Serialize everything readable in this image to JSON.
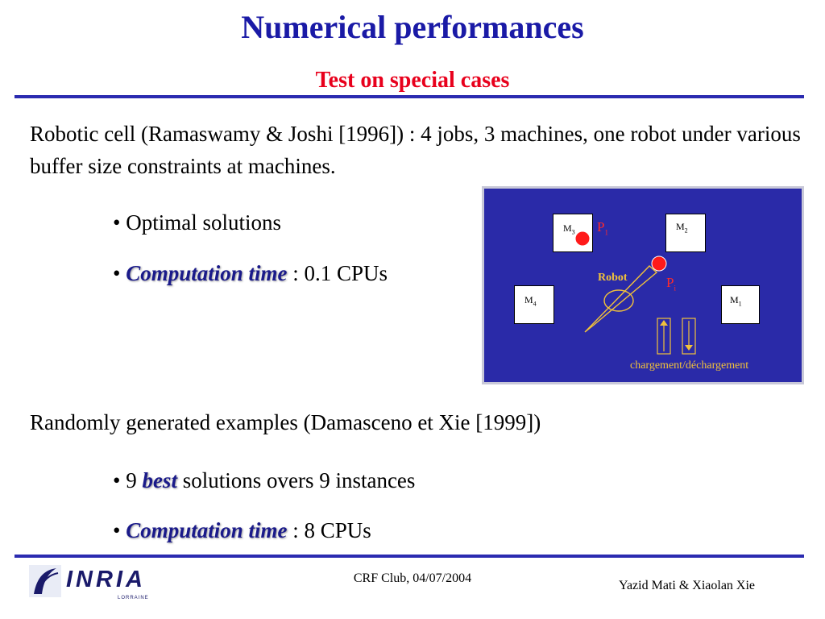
{
  "slide": {
    "title": "Numerical performances",
    "subtitle": "Test on special cases",
    "para1": "Robotic cell (Ramaswamy & Joshi [1996]) : 4 jobs, 3 machines, one robot under various buffer size constraints at machines.",
    "bullets1": [
      {
        "prefix": "• Optimal solutions",
        "em": "",
        "suffix": ""
      },
      {
        "prefix": "• ",
        "em": "Computation time",
        "suffix": " : 0.1 CPUs"
      }
    ],
    "para2": "Randomly generated examples (Damasceno et Xie [1999])",
    "bullets2": [
      {
        "prefix": "• 9 ",
        "em": "best",
        "suffix": " solutions overs 9 instances"
      },
      {
        "prefix": "• ",
        "em": "Computation time",
        "suffix": " : 8 CPUs"
      }
    ]
  },
  "diagram": {
    "machines": [
      {
        "label": "M",
        "sub": "3"
      },
      {
        "label": "M",
        "sub": "2"
      },
      {
        "label": "M",
        "sub": "4"
      },
      {
        "label": "M",
        "sub": "1"
      }
    ],
    "part_labels": [
      {
        "label": "P",
        "sub": "1"
      },
      {
        "label": "P",
        "sub": "i"
      }
    ],
    "robot_label": "Robot",
    "caption": "chargement/déchargement",
    "colors": {
      "background": "#2a2aa8",
      "accent": "#f2c23a",
      "part": "#ff2a2a"
    }
  },
  "footer": {
    "logo_text": "INRIA",
    "logo_sub": "LORRAINE",
    "center": "CRF Club, 04/07/2004",
    "right": "Yazid Mati & Xiaolan Xie"
  }
}
